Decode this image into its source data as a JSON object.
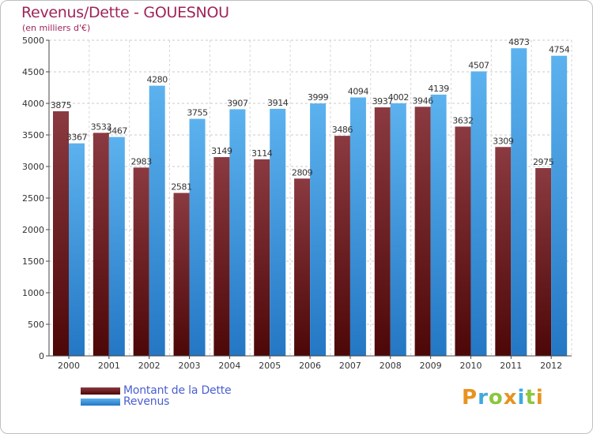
{
  "header": {
    "title": "Revenus/Dette - GOUESNOU",
    "subtitle": "(en milliers d'€)"
  },
  "legend": {
    "debt_label": "Montant de la Dette",
    "revenue_label": "Revenus"
  },
  "logo": {
    "text": "Proxiti",
    "letters": [
      {
        "char": "P",
        "color": "#e8931e"
      },
      {
        "char": "r",
        "color": "#3fa9de"
      },
      {
        "char": "o",
        "color": "#8cc63f"
      },
      {
        "char": "x",
        "color": "#e8931e"
      },
      {
        "char": "i",
        "color": "#3fa9de"
      },
      {
        "char": "t",
        "color": "#8cc63f"
      },
      {
        "char": "i",
        "color": "#e8931e"
      }
    ]
  },
  "colors": {
    "debt": "#7a2a30",
    "revenue": "#4aa3e4",
    "title": "#a0245a",
    "legend_text": "#4a5fd0"
  },
  "chart_data": {
    "type": "bar",
    "title": "Revenus/Dette - GOUESNOU",
    "subtitle": "(en milliers d'€)",
    "categories": [
      "2000",
      "2001",
      "2002",
      "2003",
      "2004",
      "2005",
      "2006",
      "2007",
      "2008",
      "2009",
      "2010",
      "2011",
      "2012"
    ],
    "series": [
      {
        "name": "Montant de la Dette",
        "values": [
          3875,
          3533,
          2983,
          2581,
          3149,
          3114,
          2809,
          3486,
          3937,
          3946,
          3632,
          3309,
          2975
        ],
        "color": "#7a2a30"
      },
      {
        "name": "Revenus",
        "values": [
          3367,
          3467,
          4280,
          3755,
          3907,
          3914,
          3999,
          4094,
          4002,
          4139,
          4507,
          4873,
          4754
        ],
        "color": "#4aa3e4"
      }
    ],
    "ylim": [
      0,
      5000
    ],
    "yticks": [
      0,
      500,
      1000,
      1500,
      2000,
      2500,
      3000,
      3500,
      4000,
      4500,
      5000
    ],
    "grid": true,
    "legend_position": "bottom-left"
  }
}
